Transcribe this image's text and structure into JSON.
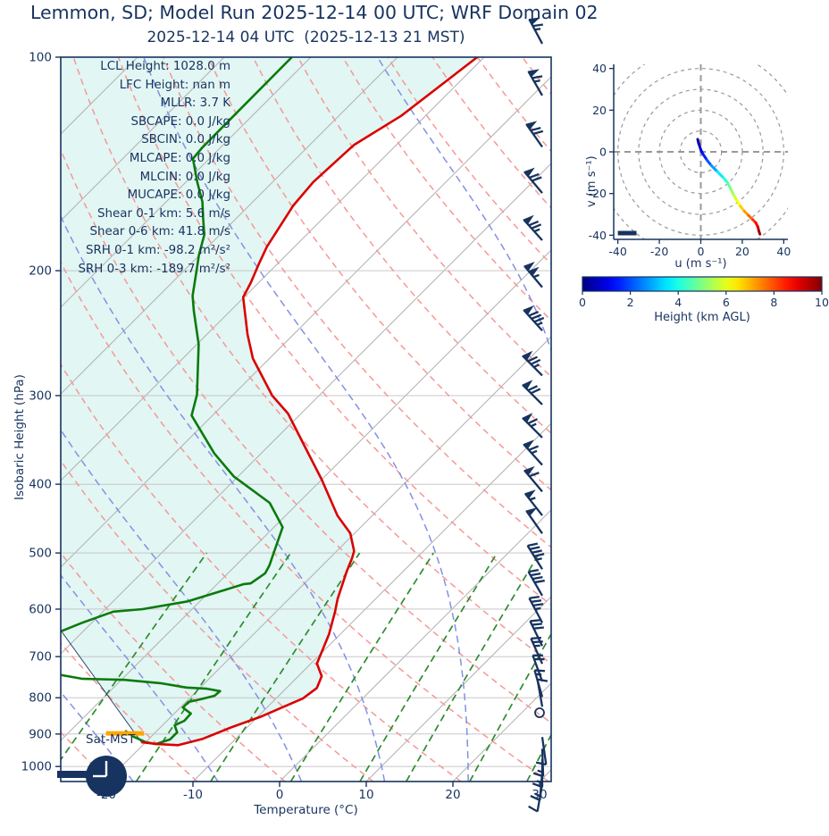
{
  "header": {
    "title": "Lemmon, SD; Model Run 2025-12-14 00 UTC; WRF Domain 02",
    "subtitle": "2025-12-14 04 UTC  (2025-12-13 21 MST)"
  },
  "stats": [
    {
      "label": "LCL Height",
      "value": "1028.0 m"
    },
    {
      "label": "LFC Height",
      "value": "nan m"
    },
    {
      "label": "MLLR",
      "value": "3.7 K"
    },
    {
      "label": "SBCAPE",
      "value": "0.0 J/kg"
    },
    {
      "label": "SBCIN",
      "value": "0.0 J/kg"
    },
    {
      "label": "MLCAPE",
      "value": "0.0 J/kg"
    },
    {
      "label": "MLCIN",
      "value": "0.0 J/kg"
    },
    {
      "label": "MUCAPE",
      "value": "0.0 J/kg"
    },
    {
      "label": "Shear 0-1 km",
      "value": "5.6 m/s"
    },
    {
      "label": "Shear 0-6 km",
      "value": "41.8 m/s"
    },
    {
      "label": "SRH 0-1 km",
      "value": "-98.2 m²/s²"
    },
    {
      "label": "SRH 0-3 km",
      "value": "-189.7 m²/s²"
    }
  ],
  "skewt": {
    "xlabel": "Temperature (°C)",
    "ylabel": "Isobaric Height (hPa)",
    "x_ticks": [
      -20,
      -10,
      0,
      10,
      20,
      30
    ],
    "p_ticks": [
      100,
      200,
      300,
      400,
      500,
      600,
      700,
      800,
      900,
      1000
    ],
    "surface_label": "Sat-MST",
    "clock_time": "21:00"
  },
  "hodograph": {
    "xlabel": "u (m s⁻¹)",
    "ylabel": "v (m s⁻¹)",
    "ticks": [
      -40,
      -20,
      0,
      20,
      40
    ],
    "rings": [
      10,
      20,
      30,
      40,
      50
    ]
  },
  "colorbar": {
    "label": "Height (km AGL)",
    "ticks": [
      0,
      2,
      4,
      6,
      8,
      10
    ],
    "min": 0,
    "max": 10
  },
  "chart_data": {
    "type": "skewt-sounding",
    "pressure_range_hpa": [
      100,
      1050
    ],
    "temperature_range_c": [
      -25,
      31
    ],
    "temperature_profile": [
      [
        924,
        -20.5
      ],
      [
        930,
        -18.4
      ],
      [
        933,
        -15.9
      ],
      [
        914,
        -13.8
      ],
      [
        880,
        -11.8
      ],
      [
        850,
        -9.6
      ],
      [
        814,
        -7.6
      ],
      [
        802,
        -6.9
      ],
      [
        775,
        -6.5
      ],
      [
        746,
        -7.3
      ],
      [
        716,
        -9.3
      ],
      [
        651,
        -11.3
      ],
      [
        605,
        -13.2
      ],
      [
        580,
        -14.4
      ],
      [
        531,
        -16.5
      ],
      [
        509,
        -17.4
      ],
      [
        497,
        -18.0
      ],
      [
        469,
        -20.5
      ],
      [
        443,
        -24.0
      ],
      [
        394,
        -30.0
      ],
      [
        357,
        -35.3
      ],
      [
        318,
        -41.5
      ],
      [
        300,
        -45.4
      ],
      [
        266,
        -51.9
      ],
      [
        246,
        -55.3
      ],
      [
        218,
        -60.1
      ],
      [
        208,
        -60.9
      ],
      [
        196,
        -62.1
      ],
      [
        185,
        -63.2
      ],
      [
        162,
        -64.9
      ],
      [
        150,
        -65.3
      ],
      [
        133,
        -64.9
      ],
      [
        121,
        -62.8
      ],
      [
        100,
        -60.8
      ]
    ],
    "dewpoint_profile": [
      [
        890,
        -23.7
      ],
      [
        908,
        -22.0
      ],
      [
        924,
        -20.0
      ],
      [
        930,
        -18.6
      ],
      [
        916,
        -17.5
      ],
      [
        895,
        -17.5
      ],
      [
        875,
        -18.6
      ],
      [
        862,
        -18.0
      ],
      [
        842,
        -18.1
      ],
      [
        826,
        -19.7
      ],
      [
        811,
        -19.7
      ],
      [
        804,
        -18.6
      ],
      [
        795,
        -17.4
      ],
      [
        783,
        -17.3
      ],
      [
        777,
        -19.1
      ],
      [
        774,
        -21.6
      ],
      [
        763,
        -25.1
      ],
      [
        755,
        -29.6
      ],
      [
        752,
        -34.7
      ],
      [
        741,
        -38.2
      ],
      [
        706,
        -44.5
      ],
      [
        645,
        -42.6
      ],
      [
        627,
        -41.1
      ],
      [
        605,
        -38.8
      ],
      [
        600,
        -35.7
      ],
      [
        585,
        -31.4
      ],
      [
        553,
        -26.9
      ],
      [
        552,
        -26.2
      ],
      [
        534,
        -25.7
      ],
      [
        521,
        -26.1
      ],
      [
        497,
        -27.2
      ],
      [
        460,
        -29.0
      ],
      [
        425,
        -33.3
      ],
      [
        390,
        -40.5
      ],
      [
        362,
        -45.4
      ],
      [
        320,
        -52.4
      ],
      [
        299,
        -54.2
      ],
      [
        254,
        -59.8
      ],
      [
        228,
        -64.2
      ],
      [
        217,
        -66.1
      ],
      [
        199,
        -68.7
      ],
      [
        190,
        -70.1
      ],
      [
        178,
        -71.8
      ],
      [
        168,
        -74.0
      ],
      [
        160,
        -75.8
      ],
      [
        150,
        -78.7
      ],
      [
        139,
        -81.9
      ],
      [
        134,
        -82.1
      ],
      [
        100,
        -82.2
      ]
    ],
    "parcel_line": [
      [
        924,
        -20.5
      ],
      [
        645,
        -42.5
      ]
    ],
    "lcl_marker": {
      "pressure": 898,
      "t_center": -23.4,
      "half_width_c": 2.2
    },
    "wind_barbs": [
      [
        93,
        65,
        332
      ],
      [
        110,
        65,
        330
      ],
      [
        130,
        70,
        325
      ],
      [
        151,
        70,
        320
      ],
      [
        176,
        75,
        318
      ],
      [
        205,
        105,
        320
      ],
      [
        236,
        85,
        318
      ],
      [
        273,
        75,
        315
      ],
      [
        300,
        70,
        315
      ],
      [
        334,
        65,
        315
      ],
      [
        365,
        65,
        318
      ],
      [
        398,
        60,
        320
      ],
      [
        430,
        55,
        322
      ],
      [
        456,
        50,
        325
      ],
      [
        512,
        45,
        328
      ],
      [
        558,
        40,
        330
      ],
      [
        609,
        35,
        332
      ],
      [
        657,
        30,
        334
      ],
      [
        696,
        25,
        336
      ],
      [
        737,
        20,
        340
      ],
      [
        775,
        15,
        344
      ],
      [
        800,
        12,
        350
      ],
      [
        840,
        0,
        0
      ],
      [
        883,
        10,
        172
      ],
      [
        917,
        15,
        178
      ],
      [
        949,
        15,
        180
      ],
      [
        991,
        15,
        185
      ],
      [
        1029,
        10,
        190
      ]
    ],
    "hodograph_trace": [
      [
        -1.5,
        6,
        0
      ],
      [
        -1,
        4,
        0.4
      ],
      [
        0,
        1,
        0.8
      ],
      [
        1,
        -1,
        1.2
      ],
      [
        3,
        -4,
        1.8
      ],
      [
        5,
        -6.5,
        2.4
      ],
      [
        8,
        -9.5,
        3.2
      ],
      [
        11,
        -12.5,
        3.9
      ],
      [
        13,
        -15,
        4.4
      ],
      [
        14.5,
        -18,
        5
      ],
      [
        16,
        -21,
        5.5
      ],
      [
        17.5,
        -23.5,
        6
      ],
      [
        19,
        -26,
        6.5
      ],
      [
        21,
        -28.5,
        7
      ],
      [
        23,
        -30.5,
        7.5
      ],
      [
        25,
        -32.5,
        8
      ],
      [
        26.5,
        -34,
        8.5
      ],
      [
        27.5,
        -36,
        9
      ],
      [
        28,
        -38,
        9.5
      ],
      [
        28.5,
        -39.5,
        10
      ]
    ],
    "hodograph_baseline_bar": {
      "u1": -40,
      "u2": -31,
      "v": -39
    },
    "background": {
      "isotherms_c": {
        "min": -100,
        "max": 30,
        "step": 10
      },
      "dry_adiabats_k": {
        "min": 230,
        "max": 440,
        "step": 10
      },
      "moist_adiabats_c": {
        "min": -70,
        "max": 40,
        "step": 10
      },
      "mixing_ratios_g_kg": [
        0.4,
        1,
        2,
        4,
        7,
        10,
        16,
        24,
        32
      ],
      "mixing_line_top_hpa": 500
    },
    "colors": {
      "temperature": "#da0000",
      "dewpoint": "#0b7a0b",
      "parcel": "#17335f",
      "isotherm": "#b3b3b3",
      "grid": "#c0c0c0",
      "dry_adiabat": "#f59896",
      "moist_adiabat": "#8490e2",
      "mixing_ratio": "#2e8b2e",
      "shade": "#e2f6f4",
      "navy": "#17335f",
      "lcl": "#ffa500",
      "hodo_grid": "#999999"
    }
  }
}
